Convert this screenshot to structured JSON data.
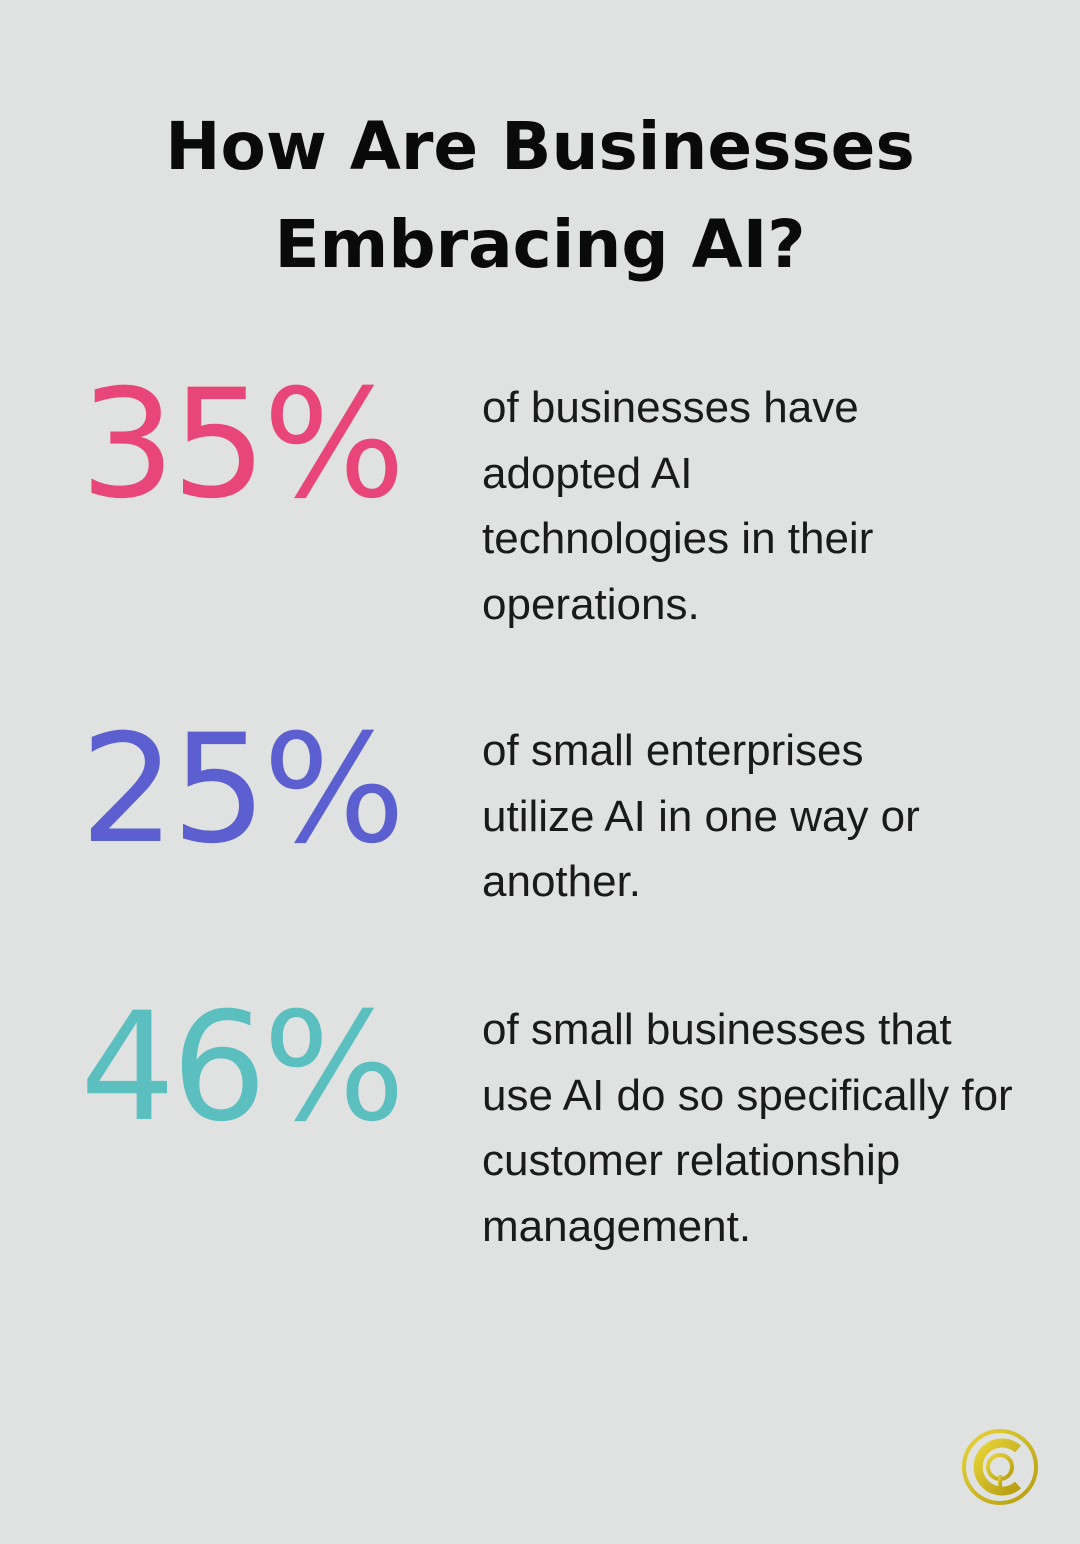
{
  "title": "How Are Businesses Embracing AI?",
  "stats": [
    {
      "value": "35%",
      "color": "#e8467a",
      "text": "of businesses have adopted AI technologies in their operations."
    },
    {
      "value": "25%",
      "color": "#5b5fcf",
      "text": "of small enterprises utilize AI in one way or another."
    },
    {
      "value": "46%",
      "color": "#5bbfbf",
      "text": "of small businesses that use AI do so specifically for customer relationship management."
    }
  ],
  "logo": {
    "icon": "gold-circle-q-logo",
    "color": "#d4bf1f"
  }
}
